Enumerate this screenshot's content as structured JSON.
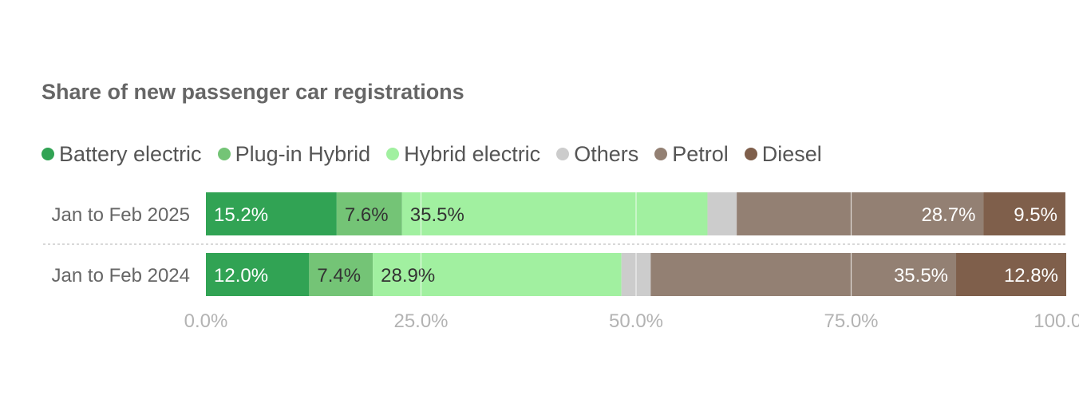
{
  "chart_data": {
    "type": "bar",
    "orientation": "horizontal",
    "stacked": true,
    "title": "Share of new passenger car registrations",
    "categories": [
      "Jan to Feb 2025",
      "Jan to Feb 2024"
    ],
    "series": [
      {
        "name": "Battery electric",
        "color": "#31a354",
        "values": [
          15.2,
          12.0
        ],
        "labels": [
          "15.2%",
          "12.0%"
        ],
        "label_color": "#ffffff"
      },
      {
        "name": "Plug-in Hybrid",
        "color": "#74c476",
        "values": [
          7.6,
          7.4
        ],
        "labels": [
          "7.6%",
          "7.4%"
        ],
        "label_color": "#333333"
      },
      {
        "name": "Hybrid electric",
        "color": "#a1f0a0",
        "values": [
          35.5,
          28.9
        ],
        "labels": [
          "35.5%",
          "28.9%"
        ],
        "label_color": "#333333"
      },
      {
        "name": "Others",
        "color": "#cccccc",
        "values": [
          3.4,
          3.4
        ],
        "labels": [
          "",
          ""
        ],
        "label_color": "#333333"
      },
      {
        "name": "Petrol",
        "color": "#938073",
        "values": [
          28.7,
          35.5
        ],
        "labels": [
          "28.7%",
          "35.5%"
        ],
        "label_color": "#ffffff"
      },
      {
        "name": "Diesel",
        "color": "#7f5f4b",
        "values": [
          9.5,
          12.8
        ],
        "labels": [
          "9.5%",
          "12.8%"
        ],
        "label_color": "#ffffff"
      }
    ],
    "xlim": [
      0,
      100
    ],
    "ticks": [
      0,
      25,
      50,
      75,
      100
    ],
    "tick_labels": [
      "0.0%",
      "25.0%",
      "50.0%",
      "75.0%",
      "100.0%"
    ],
    "grid": true,
    "legend_position": "top-left"
  }
}
